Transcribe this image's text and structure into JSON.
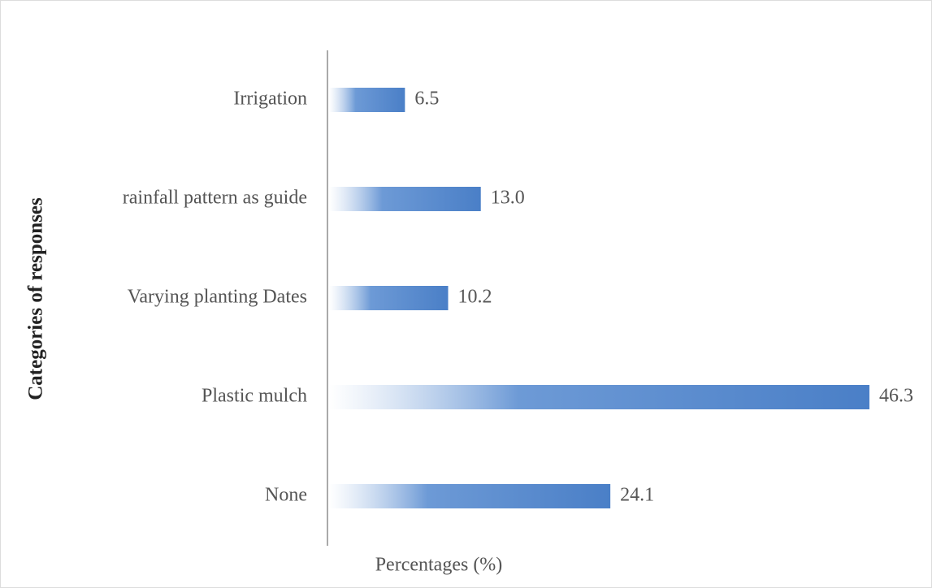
{
  "chart_data": {
    "type": "bar",
    "orientation": "horizontal",
    "x_label": "Percentages (%)",
    "y_label": "Categories of responses",
    "categories": [
      "Irrigation",
      "rainfall pattern as guide",
      "Varying planting Dates",
      "Plastic mulch",
      "None"
    ],
    "values": [
      6.5,
      13.0,
      10.2,
      46.3,
      24.1
    ],
    "value_labels": [
      "6.5",
      "13.0",
      "10.2",
      "46.3",
      "24.1"
    ],
    "color": "#4a7fc7"
  }
}
